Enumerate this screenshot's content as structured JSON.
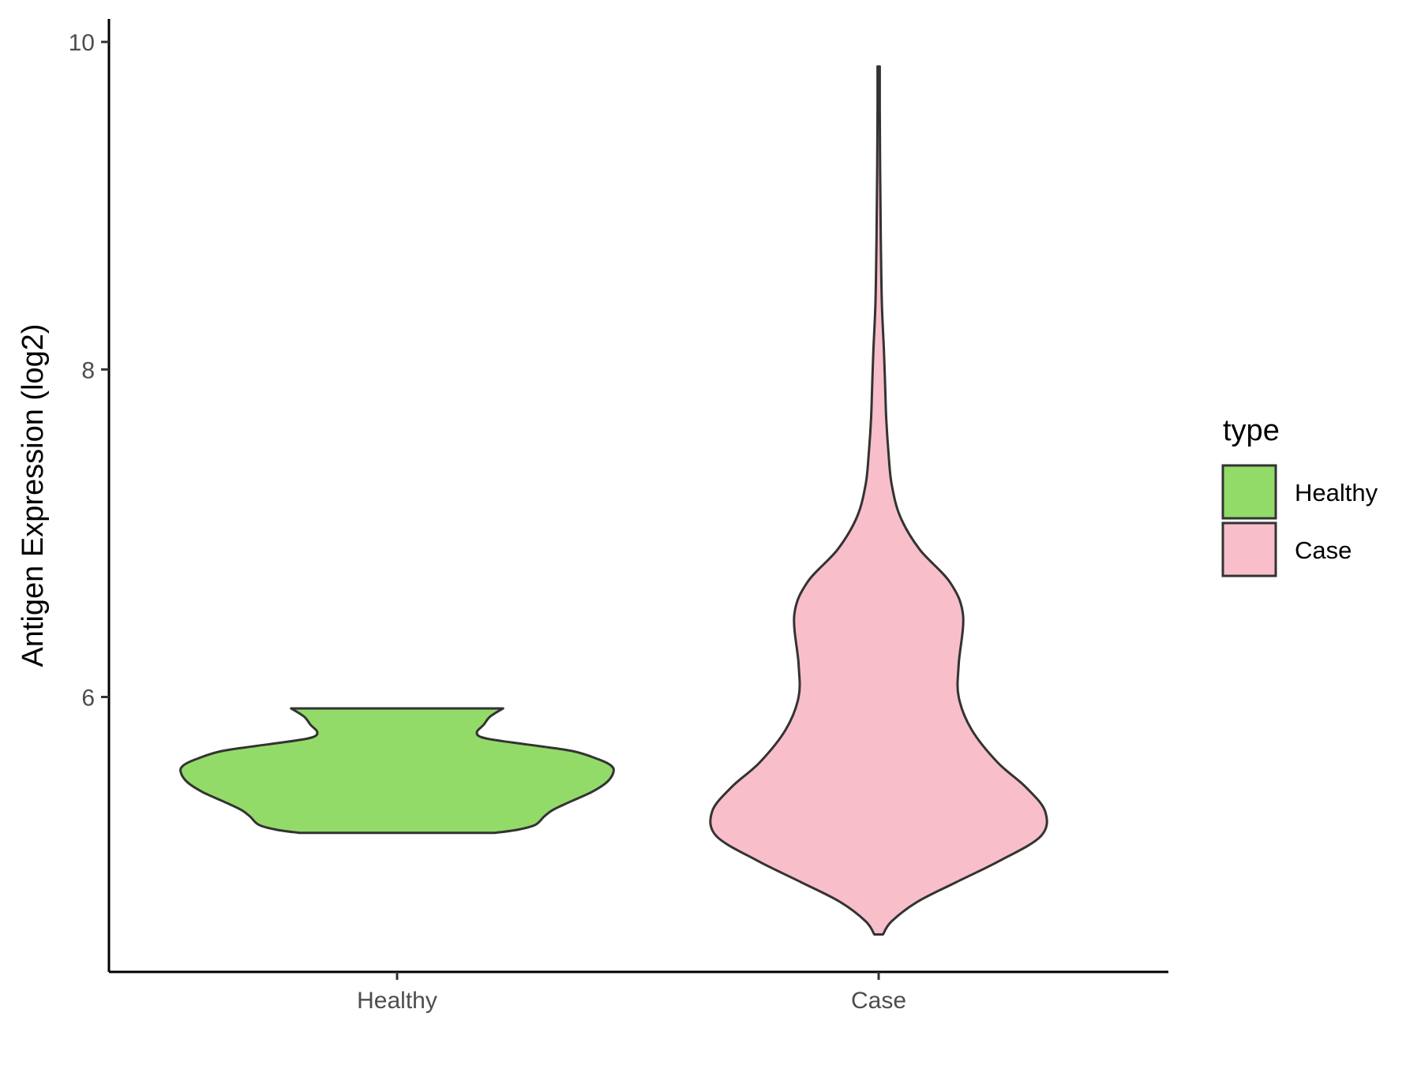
{
  "chart_data": {
    "type": "violin",
    "ylabel": "Antigen Expression (log2)",
    "xlabel": "",
    "title": "",
    "categories": [
      "Healthy",
      "Case"
    ],
    "ylim": [
      4.35,
      10.15
    ],
    "yticks": [
      6,
      8,
      10
    ],
    "legend": {
      "title": "type",
      "position": "right",
      "entries": [
        "Healthy",
        "Case"
      ]
    },
    "series": [
      {
        "category": "Healthy",
        "color": "#93DB69",
        "min": 5.17,
        "max": 5.93,
        "profile": [
          [
            5.17,
            0.45
          ],
          [
            5.19,
            0.56
          ],
          [
            5.22,
            0.64
          ],
          [
            5.27,
            0.68
          ],
          [
            5.31,
            0.72
          ],
          [
            5.36,
            0.8
          ],
          [
            5.42,
            0.9
          ],
          [
            5.48,
            0.97
          ],
          [
            5.54,
            1.0
          ],
          [
            5.58,
            0.99
          ],
          [
            5.62,
            0.93
          ],
          [
            5.67,
            0.81
          ],
          [
            5.71,
            0.6
          ],
          [
            5.74,
            0.44
          ],
          [
            5.76,
            0.38
          ],
          [
            5.79,
            0.37
          ],
          [
            5.83,
            0.4
          ],
          [
            5.88,
            0.43
          ],
          [
            5.93,
            0.49
          ]
        ]
      },
      {
        "category": "Case",
        "color": "#F8BFCA",
        "min": 4.55,
        "max": 9.85,
        "profile": [
          [
            4.55,
            0.02
          ],
          [
            4.63,
            0.06
          ],
          [
            4.75,
            0.18
          ],
          [
            4.87,
            0.36
          ],
          [
            5.0,
            0.56
          ],
          [
            5.15,
            0.75
          ],
          [
            5.3,
            0.77
          ],
          [
            5.45,
            0.68
          ],
          [
            5.6,
            0.55
          ],
          [
            5.8,
            0.43
          ],
          [
            6.0,
            0.37
          ],
          [
            6.2,
            0.37
          ],
          [
            6.5,
            0.39
          ],
          [
            6.7,
            0.33
          ],
          [
            6.9,
            0.19
          ],
          [
            7.1,
            0.1
          ],
          [
            7.3,
            0.06
          ],
          [
            7.5,
            0.045
          ],
          [
            7.7,
            0.035
          ],
          [
            7.9,
            0.03
          ],
          [
            8.1,
            0.025
          ],
          [
            8.4,
            0.015
          ],
          [
            8.8,
            0.01
          ],
          [
            9.2,
            0.007
          ],
          [
            9.6,
            0.005
          ],
          [
            9.85,
            0.005
          ]
        ]
      }
    ]
  }
}
